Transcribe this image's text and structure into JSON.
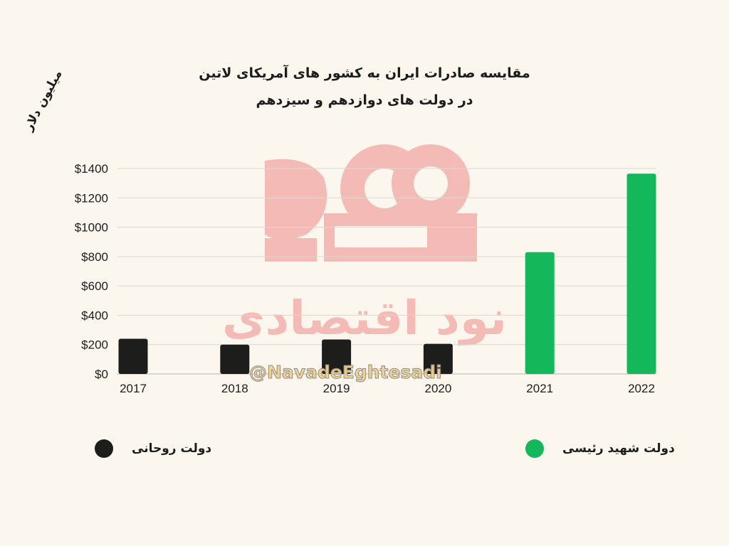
{
  "title_line1": "مقایسه صادرات ایران به کشور های آمریکای لاتین",
  "title_line2": "در دولت های دوازدهم و سیزدهم",
  "watermark": {
    "logo_text": "نود اقتصادی",
    "handle": "@NavadeEghtesadi"
  },
  "legend": [
    {
      "label": "دولت روحانی",
      "color": "#1d1d1b"
    },
    {
      "label": "دولت شهید رئیسی",
      "color": "#12b85a"
    }
  ],
  "colors": {
    "rouhani": "#1d1d1b",
    "raisi": "#12b85a",
    "grid": "#dcd8cf",
    "background": "#fbf7ee"
  },
  "chart_data": {
    "type": "bar",
    "title": "مقایسه صادرات ایران به کشور های آمریکای لاتین در دولت های دوازدهم و سیزدهم",
    "ylabel": "میلیون دلار",
    "xlabel": "",
    "categories": [
      "2017",
      "2018",
      "2019",
      "2020",
      "2021",
      "2022"
    ],
    "values": [
      240,
      200,
      235,
      205,
      830,
      1365
    ],
    "bar_groups": [
      "دولت روحانی",
      "دولت روحانی",
      "دولت روحانی",
      "دولت روحانی",
      "دولت شهید رئیسی",
      "دولت شهید رئیسی"
    ],
    "ylim": [
      0,
      1400
    ],
    "yticks": [
      0,
      200,
      400,
      600,
      800,
      1000,
      1200,
      1400
    ],
    "ytick_labels": [
      "$0",
      "$200",
      "$400",
      "$600",
      "$800",
      "$1000",
      "$1200",
      "$1400"
    ],
    "grid": true,
    "legend_position": "bottom"
  }
}
